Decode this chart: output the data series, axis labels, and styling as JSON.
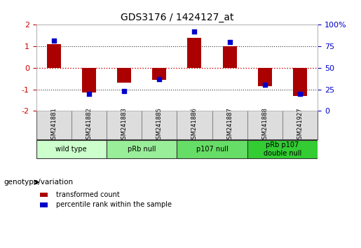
{
  "title": "GDS3176 / 1424127_at",
  "samples": [
    "GSM241881",
    "GSM241882",
    "GSM241883",
    "GSM241885",
    "GSM241886",
    "GSM241887",
    "GSM241888",
    "GSM241927"
  ],
  "bar_values": [
    1.1,
    -1.15,
    -0.7,
    -0.55,
    1.4,
    1.0,
    -0.85,
    -1.3
  ],
  "percentile_values": [
    82,
    20,
    23,
    37,
    92,
    80,
    30,
    20
  ],
  "groups": [
    {
      "label": "wild type",
      "start": 0,
      "end": 2,
      "color": "#ccffcc"
    },
    {
      "label": "pRb null",
      "start": 2,
      "end": 4,
      "color": "#99ee99"
    },
    {
      "label": "p107 null",
      "start": 4,
      "end": 6,
      "color": "#66dd66"
    },
    {
      "label": "pRb p107\ndouble null",
      "start": 6,
      "end": 8,
      "color": "#33cc33"
    }
  ],
  "bar_color": "#aa0000",
  "dot_color": "#0000cc",
  "zero_line_color": "#cc0000",
  "dotted_line_color": "#333333",
  "ylim_left": [
    -2,
    2
  ],
  "ylim_right": [
    0,
    100
  ],
  "yticks_left": [
    -2,
    -1,
    0,
    1,
    2
  ],
  "yticks_right": [
    0,
    25,
    50,
    75,
    100
  ],
  "ylabel_left_color": "#cc0000",
  "ylabel_right_color": "#0000cc",
  "legend_bar_label": "transformed count",
  "legend_dot_label": "percentile rank within the sample",
  "genotype_label": "genotype/variation",
  "bg_color": "#ffffff",
  "plot_bg_color": "#ffffff",
  "sample_area_color": "#dddddd",
  "bar_width": 0.4
}
